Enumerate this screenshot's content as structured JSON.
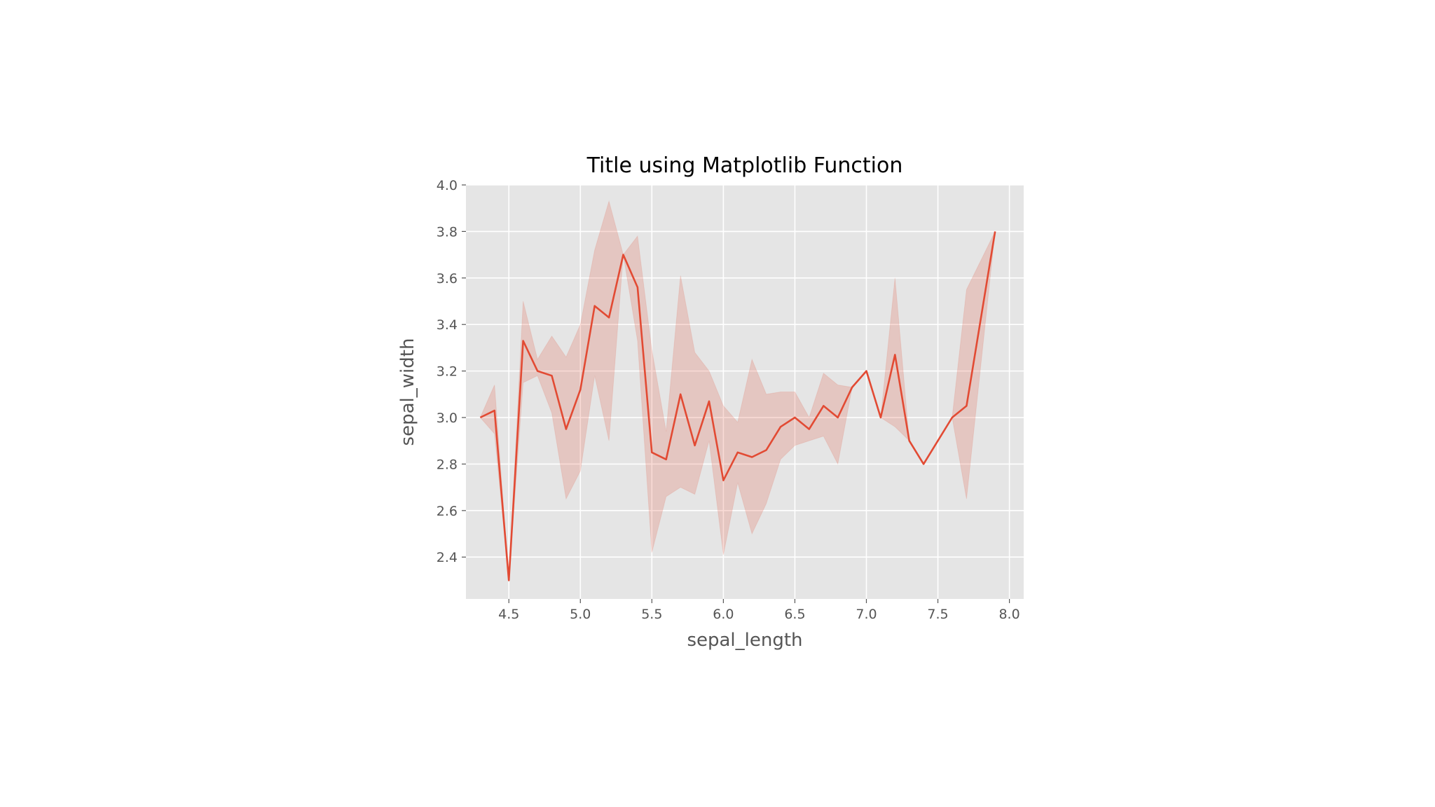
{
  "chart_data": {
    "type": "line",
    "title": "Title using Matplotlib Function",
    "xlabel": "sepal_length",
    "ylabel": "sepal_width",
    "xlim": [
      4.2,
      8.1
    ],
    "ylim": [
      2.22,
      4.0
    ],
    "xticks": [
      4.5,
      5.0,
      5.5,
      6.0,
      6.5,
      7.0,
      7.5,
      8.0
    ],
    "yticks": [
      2.4,
      2.6,
      2.8,
      3.0,
      3.2,
      3.4,
      3.6,
      3.8,
      4.0
    ],
    "grid": true,
    "style": "ggplot",
    "series": [
      {
        "color": "#e24a33",
        "band_color": "#e24a33",
        "x": [
          4.3,
          4.4,
          4.5,
          4.6,
          4.7,
          4.8,
          4.9,
          5.0,
          5.1,
          5.2,
          5.3,
          5.4,
          5.5,
          5.6,
          5.7,
          5.8,
          5.9,
          6.0,
          6.1,
          6.2,
          6.3,
          6.4,
          6.5,
          6.6,
          6.7,
          6.8,
          6.9,
          7.0,
          7.1,
          7.2,
          7.3,
          7.4,
          7.6,
          7.7,
          7.9
        ],
        "y": [
          3.0,
          3.03,
          2.3,
          3.33,
          3.2,
          3.18,
          2.95,
          3.12,
          3.48,
          3.43,
          3.7,
          3.56,
          2.85,
          2.82,
          3.1,
          2.88,
          3.07,
          2.73,
          2.85,
          2.83,
          2.86,
          2.96,
          3.0,
          2.95,
          3.05,
          3.0,
          3.13,
          3.2,
          3.0,
          3.27,
          2.9,
          2.8,
          3.0,
          3.05,
          3.8
        ],
        "ci_low": [
          3.0,
          2.93,
          2.3,
          3.15,
          3.18,
          3.02,
          2.65,
          2.77,
          3.18,
          2.9,
          3.7,
          3.33,
          2.42,
          2.66,
          2.7,
          2.67,
          2.9,
          2.41,
          2.72,
          2.5,
          2.63,
          2.82,
          2.88,
          2.9,
          2.92,
          2.8,
          3.13,
          3.2,
          3.0,
          2.96,
          2.9,
          2.8,
          3.0,
          2.65,
          3.8
        ],
        "ci_high": [
          3.0,
          3.14,
          2.3,
          3.5,
          3.25,
          3.35,
          3.26,
          3.4,
          3.72,
          3.93,
          3.7,
          3.78,
          3.29,
          2.94,
          3.61,
          3.28,
          3.2,
          3.05,
          2.98,
          3.25,
          3.1,
          3.11,
          3.11,
          3.0,
          3.19,
          3.14,
          3.13,
          3.2,
          3.0,
          3.6,
          2.9,
          2.8,
          3.0,
          3.55,
          3.8
        ]
      }
    ]
  }
}
